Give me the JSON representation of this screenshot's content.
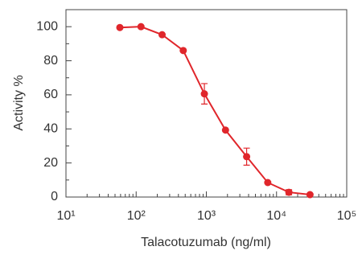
{
  "chart_data": {
    "type": "line",
    "x_label": "Talacotuzumab (ng/ml)",
    "y_label": "Activity %",
    "x": [
      58.59,
      117.19,
      234.38,
      468.75,
      937.5,
      1875,
      3750,
      7500,
      15000,
      30000
    ],
    "series": [
      {
        "color": "#e0262b",
        "values": [
          99.5,
          100,
          95.3,
          86,
          60.6,
          39.3,
          23.7,
          8.5,
          2.8,
          1.4
        ],
        "errors": [
          null,
          null,
          null,
          null,
          6,
          null,
          5,
          null,
          1.5,
          null
        ]
      }
    ],
    "xscale": "log",
    "xlim": [
      10,
      100000
    ],
    "xticks": [
      {
        "value": 10,
        "label": "10¹"
      },
      {
        "value": 100,
        "label": "10²"
      },
      {
        "value": 1000,
        "label": "10³"
      },
      {
        "value": 10000,
        "label": "10⁴"
      },
      {
        "value": 100000,
        "label": "10⁵"
      }
    ],
    "xminor": [
      20,
      30,
      40,
      50,
      60,
      70,
      80,
      90,
      200,
      300,
      400,
      500,
      600,
      700,
      800,
      900,
      2000,
      3000,
      4000,
      5000,
      6000,
      7000,
      8000,
      9000,
      20000,
      30000,
      40000,
      50000,
      60000,
      70000,
      80000,
      90000
    ],
    "ylim": [
      0,
      110
    ],
    "yticks": [
      0,
      20,
      40,
      60,
      80,
      100
    ],
    "yminor": [
      10,
      30,
      50,
      70,
      90
    ]
  }
}
